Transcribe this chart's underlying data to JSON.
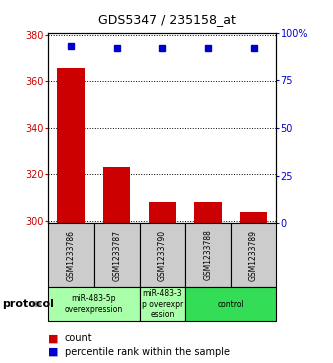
{
  "title": "GDS5347 / 235158_at",
  "samples": [
    "GSM1233786",
    "GSM1233787",
    "GSM1233790",
    "GSM1233788",
    "GSM1233789"
  ],
  "counts": [
    366,
    323,
    308,
    308,
    304
  ],
  "percentiles": [
    93,
    92,
    92,
    92,
    92
  ],
  "ylim_left": [
    299,
    381
  ],
  "ylim_right": [
    0,
    100
  ],
  "yticks_left": [
    300,
    320,
    340,
    360,
    380
  ],
  "yticks_right": [
    0,
    25,
    50,
    75,
    100
  ],
  "bar_color": "#cc0000",
  "dot_color": "#0000cc",
  "protocol_groups": [
    {
      "label": "miR-483-5p\noverexpression",
      "start": 0,
      "end": 2,
      "color": "#aaffaa"
    },
    {
      "label": "miR-483-3\np overexpr\nession",
      "start": 2,
      "end": 3,
      "color": "#aaffaa"
    },
    {
      "label": "control",
      "start": 3,
      "end": 5,
      "color": "#33dd55"
    }
  ],
  "sample_bg": "#cccccc",
  "label_color_left": "#cc0000",
  "label_color_right": "#0000cc",
  "protocol_label": "protocol",
  "legend_count_label": "count",
  "legend_pct_label": "percentile rank within the sample",
  "title_fontsize": 9,
  "axis_fontsize": 7,
  "sample_fontsize": 5.5,
  "protocol_fontsize": 5.5,
  "legend_fontsize": 7
}
